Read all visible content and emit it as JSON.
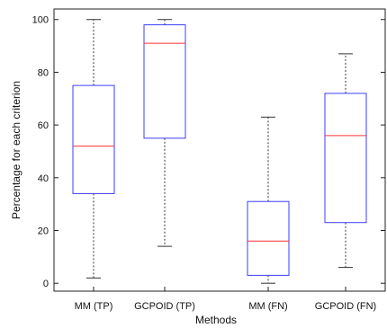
{
  "chart_data": {
    "type": "boxplot",
    "title": "",
    "xlabel": "Methods",
    "ylabel": "Percentage for each criterion",
    "ylim": [
      -3,
      104
    ],
    "yticks": [
      0,
      20,
      40,
      60,
      80,
      100
    ],
    "categories": [
      "MM (TP)",
      "GCPOID (TP)",
      "MM (FN)",
      "GCPOID (FN)"
    ],
    "boxes": [
      {
        "whisker_low": 2,
        "q1": 34,
        "median": 52,
        "q3": 75,
        "whisker_high": 100
      },
      {
        "whisker_low": 14,
        "q1": 55,
        "median": 91,
        "q3": 98,
        "whisker_high": 100
      },
      {
        "whisker_low": 0,
        "q1": 3,
        "median": 16,
        "q3": 31,
        "whisker_high": 63
      },
      {
        "whisker_low": 6,
        "q1": 23,
        "median": 56,
        "q3": 72,
        "whisker_high": 87
      }
    ],
    "colors": {
      "box": "#3d3dff",
      "median": "#ff3333",
      "whisker": "#333333",
      "axis": "#222222"
    }
  }
}
